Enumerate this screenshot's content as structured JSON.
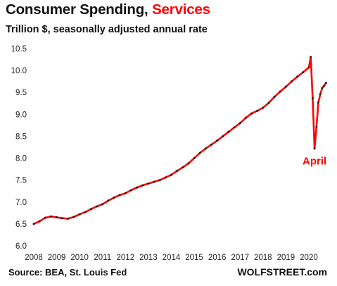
{
  "header": {
    "title_main": "Consumer Spending,",
    "title_highlight": "Services",
    "subtitle": "Trillion $, seasonally adjusted annual rate"
  },
  "footer": {
    "source": "Source: BEA, St. Louis Fed",
    "brand": "WOLFSTREET.com"
  },
  "colors": {
    "line": "#ff0000",
    "marker": "#2a1a1a",
    "highlight": "#ff0000",
    "text": "#111111",
    "background": "#ffffff"
  },
  "chart_data": {
    "type": "line",
    "title": "Consumer Spending, Services",
    "subtitle": "Trillion $, seasonally adjusted annual rate",
    "xlabel": "",
    "ylabel": "",
    "xlim": [
      2008,
      2020.83
    ],
    "ylim": [
      6.0,
      10.5
    ],
    "grid": false,
    "legend": "none",
    "x_ticks": [
      "2008",
      "2009",
      "2010",
      "2011",
      "2012",
      "2013",
      "2014",
      "2015",
      "2016",
      "2017",
      "2018",
      "2019",
      "2020"
    ],
    "y_ticks": [
      "6.0",
      "6.5",
      "7.0",
      "7.5",
      "8.0",
      "8.5",
      "9.0",
      "9.5",
      "10.0",
      "10.5"
    ],
    "annotations": [
      {
        "text": "April",
        "x": 2020.25,
        "y": 7.86
      }
    ],
    "series": [
      {
        "points": [
          [
            2008.0,
            6.5
          ],
          [
            2008.25,
            6.56
          ],
          [
            2008.5,
            6.64
          ],
          [
            2008.75,
            6.67
          ],
          [
            2009.0,
            6.65
          ],
          [
            2009.25,
            6.63
          ],
          [
            2009.5,
            6.62
          ],
          [
            2009.75,
            6.66
          ],
          [
            2010.0,
            6.72
          ],
          [
            2010.25,
            6.77
          ],
          [
            2010.5,
            6.84
          ],
          [
            2010.75,
            6.9
          ],
          [
            2011.0,
            6.95
          ],
          [
            2011.25,
            7.03
          ],
          [
            2011.5,
            7.1
          ],
          [
            2011.75,
            7.16
          ],
          [
            2012.0,
            7.2
          ],
          [
            2012.25,
            7.27
          ],
          [
            2012.5,
            7.33
          ],
          [
            2012.75,
            7.38
          ],
          [
            2013.0,
            7.42
          ],
          [
            2013.25,
            7.46
          ],
          [
            2013.5,
            7.5
          ],
          [
            2013.75,
            7.56
          ],
          [
            2014.0,
            7.62
          ],
          [
            2014.25,
            7.71
          ],
          [
            2014.5,
            7.79
          ],
          [
            2014.75,
            7.88
          ],
          [
            2015.0,
            8.0
          ],
          [
            2015.25,
            8.12
          ],
          [
            2015.5,
            8.22
          ],
          [
            2015.75,
            8.31
          ],
          [
            2016.0,
            8.4
          ],
          [
            2016.25,
            8.5
          ],
          [
            2016.5,
            8.6
          ],
          [
            2016.75,
            8.7
          ],
          [
            2017.0,
            8.8
          ],
          [
            2017.25,
            8.92
          ],
          [
            2017.5,
            9.02
          ],
          [
            2017.75,
            9.08
          ],
          [
            2018.0,
            9.15
          ],
          [
            2018.25,
            9.26
          ],
          [
            2018.5,
            9.4
          ],
          [
            2018.75,
            9.52
          ],
          [
            2019.0,
            9.63
          ],
          [
            2019.25,
            9.75
          ],
          [
            2019.5,
            9.86
          ],
          [
            2019.75,
            9.96
          ],
          [
            2020.0,
            10.07
          ],
          [
            2020.083,
            10.31
          ],
          [
            2020.167,
            9.37
          ],
          [
            2020.25,
            8.22
          ],
          [
            2020.333,
            8.71
          ],
          [
            2020.417,
            9.27
          ],
          [
            2020.5,
            9.46
          ],
          [
            2020.583,
            9.6
          ],
          [
            2020.667,
            9.65
          ],
          [
            2020.75,
            9.72
          ]
        ]
      }
    ]
  }
}
